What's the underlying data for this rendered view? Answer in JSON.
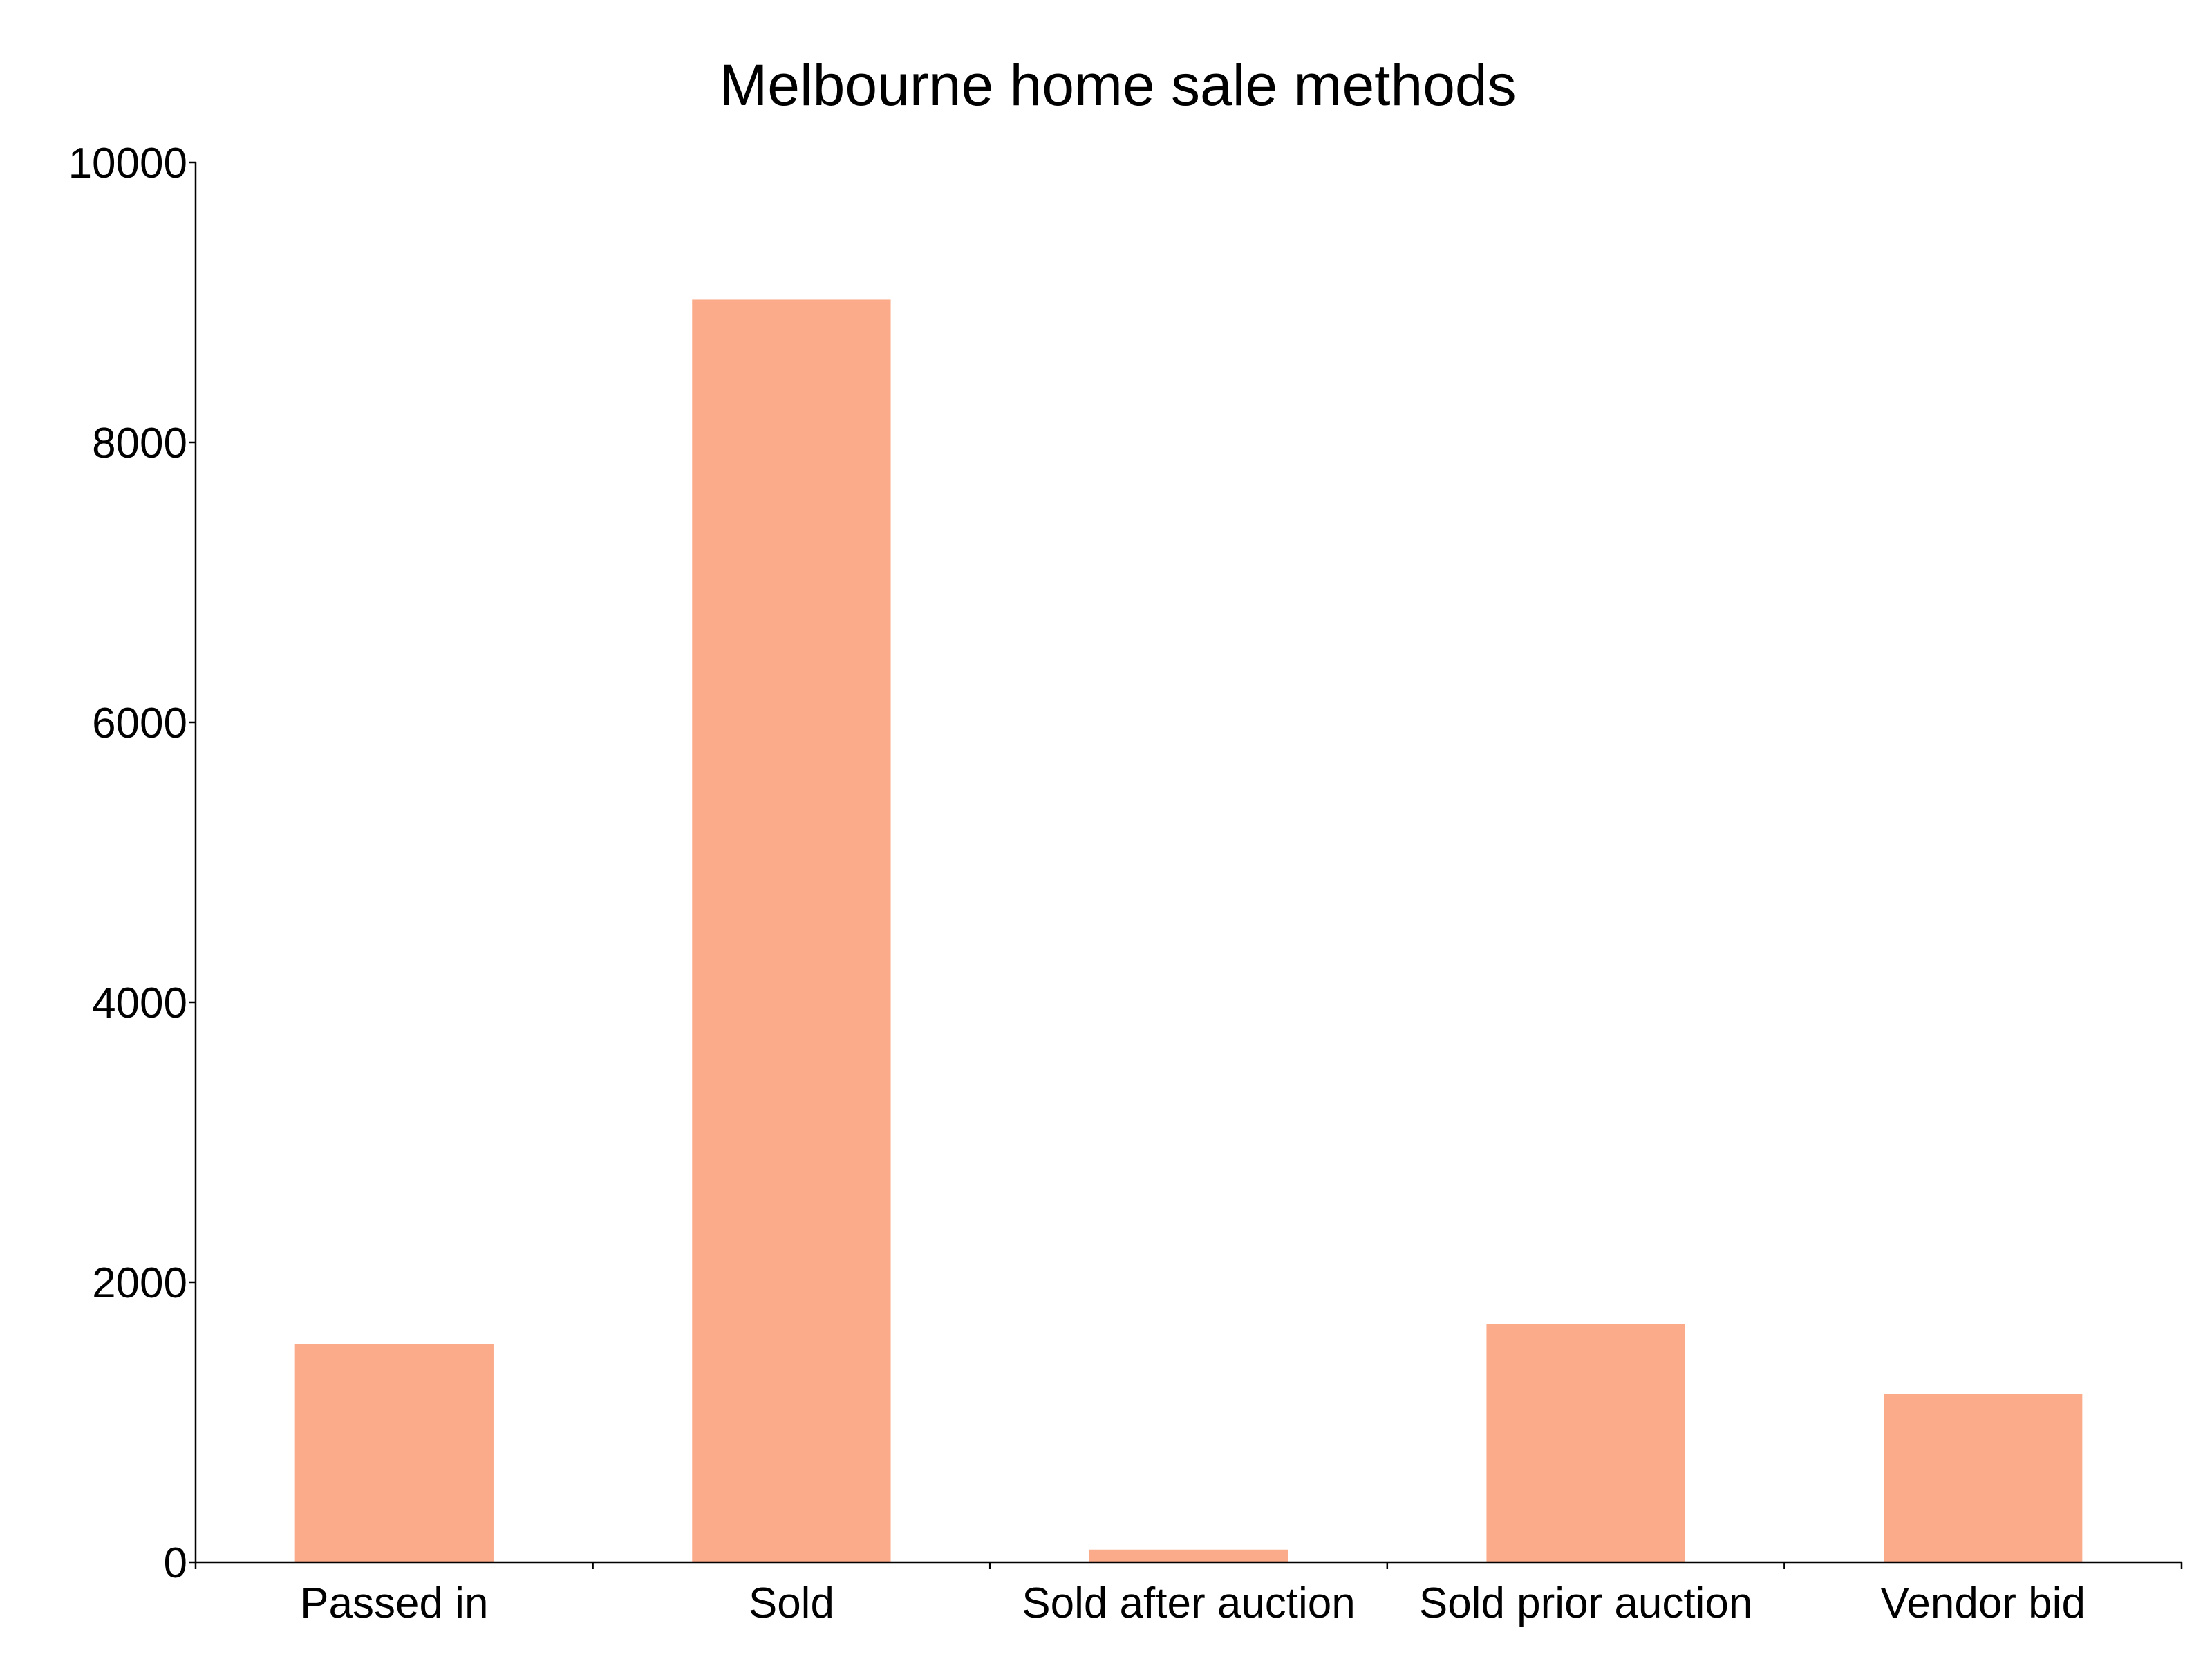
{
  "chart_data": {
    "type": "bar",
    "title": "Melbourne home sale methods",
    "xlabel": "",
    "ylabel": "",
    "categories": [
      "Passed in",
      "Sold",
      "Sold after auction",
      "Sold prior auction",
      "Vendor bid"
    ],
    "values": [
      1560,
      9020,
      90,
      1700,
      1200
    ],
    "ylim": [
      0,
      10000
    ],
    "yticks": [
      "0",
      "2000",
      "4000",
      "6000",
      "8000",
      "10000"
    ],
    "bar_color": "#fbab89",
    "grid": false,
    "legend": "none"
  }
}
